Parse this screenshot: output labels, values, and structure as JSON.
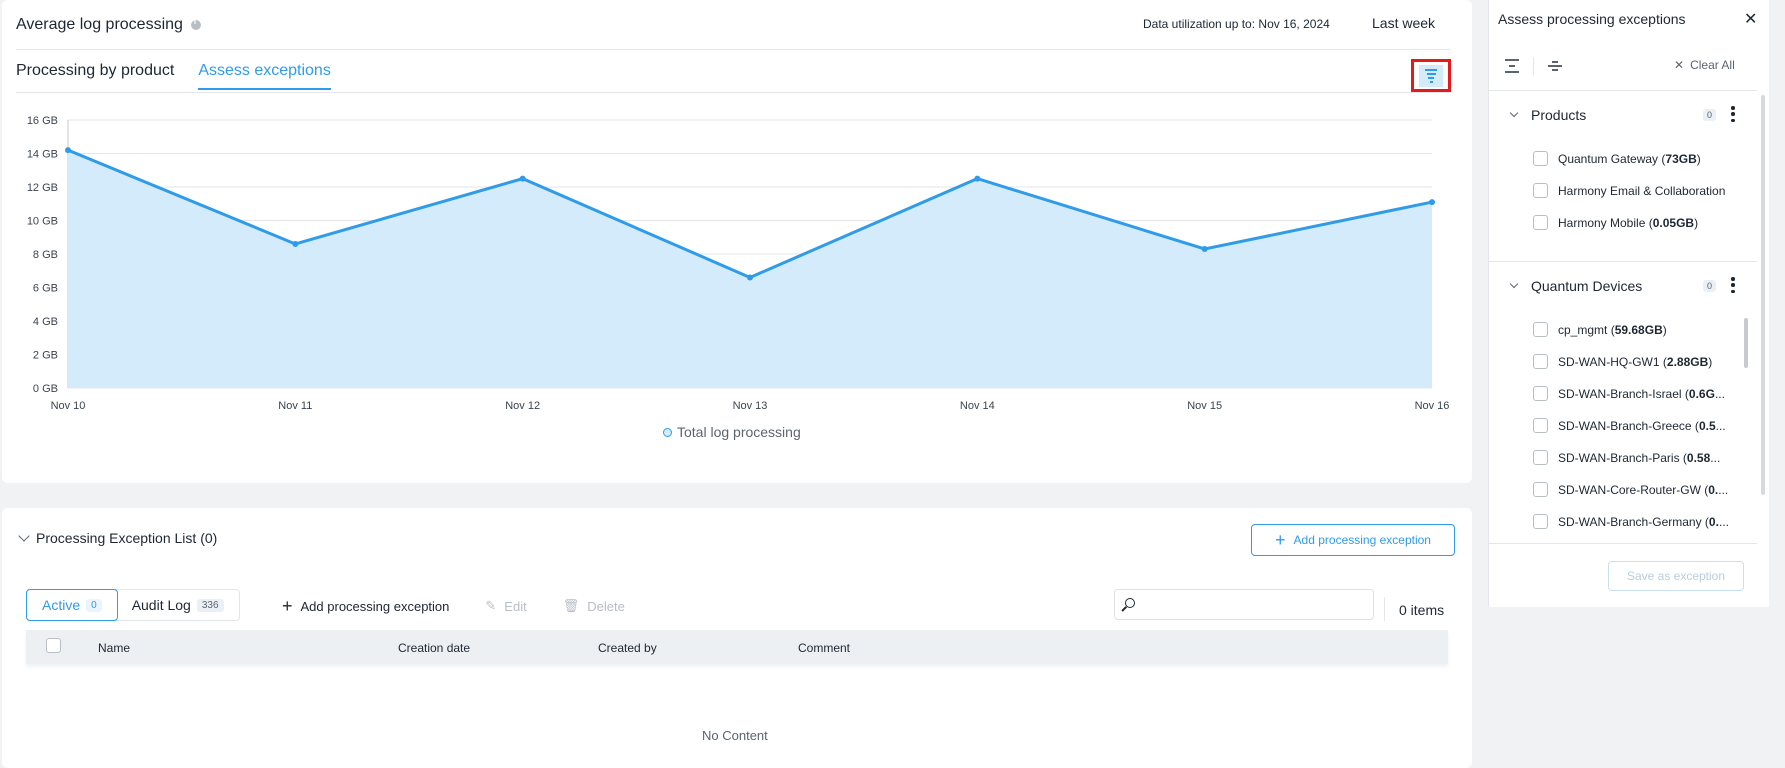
{
  "header": {
    "title": "Average log processing",
    "utilization": "Data utilization up to: Nov 16, 2024",
    "period": "Last week"
  },
  "tabs": [
    {
      "label": "Processing by product",
      "active": false
    },
    {
      "label": "Assess exceptions",
      "active": true
    }
  ],
  "chart_data": {
    "type": "area",
    "x": [
      "Nov 10",
      "Nov 11",
      "Nov 12",
      "Nov 13",
      "Nov 14",
      "Nov 15",
      "Nov 16"
    ],
    "series": [
      {
        "name": "Total log processing",
        "values": [
          14.2,
          8.6,
          12.5,
          6.6,
          12.5,
          8.3,
          11.1
        ]
      }
    ],
    "y_ticks": [
      "0 GB",
      "2 GB",
      "4 GB",
      "6 GB",
      "8 GB",
      "10 GB",
      "12 GB",
      "14 GB",
      "16 GB"
    ],
    "ylim": [
      0,
      16
    ],
    "grid": true,
    "legend": "bottom-center",
    "color": "#2f9be9",
    "fill": "#d4ebfb"
  },
  "exceptions": {
    "title": "Processing Exception List (0)",
    "add_button": "Add processing exception",
    "segments": [
      {
        "label": "Active",
        "count": "0"
      },
      {
        "label": "Audit Log",
        "count": "336"
      }
    ],
    "actions": {
      "add": "Add processing exception",
      "edit": "Edit",
      "delete": "Delete"
    },
    "search_placeholder": "",
    "items": "0 items",
    "columns": [
      "Name",
      "Creation date",
      "Created by",
      "Comment"
    ],
    "empty": "No Content"
  },
  "panel": {
    "title": "Assess processing exceptions",
    "clear_all": "Clear All",
    "save_button": "Save as exception",
    "groups": [
      {
        "name": "Products",
        "count": "0",
        "items": [
          {
            "name": "Quantum Gateway",
            "value": "73GB"
          },
          {
            "name": "Harmony Email & Collaboration",
            "value": ""
          },
          {
            "name": "Harmony Mobile",
            "value": "0.05GB"
          }
        ]
      },
      {
        "name": "Quantum Devices",
        "count": "0",
        "items": [
          {
            "name": "cp_mgmt",
            "value": "59.68GB"
          },
          {
            "name": "SD-WAN-HQ-GW1",
            "value": "2.88GB"
          },
          {
            "name": "SD-WAN-Branch-Israel",
            "value": "0.6G"
          },
          {
            "name": "SD-WAN-Branch-Greece",
            "value": "0.5"
          },
          {
            "name": "SD-WAN-Branch-Paris",
            "value": "0.58"
          },
          {
            "name": "SD-WAN-Core-Router-GW",
            "value": "0."
          },
          {
            "name": "SD-WAN-Branch-Germany",
            "value": "0."
          }
        ]
      }
    ]
  }
}
